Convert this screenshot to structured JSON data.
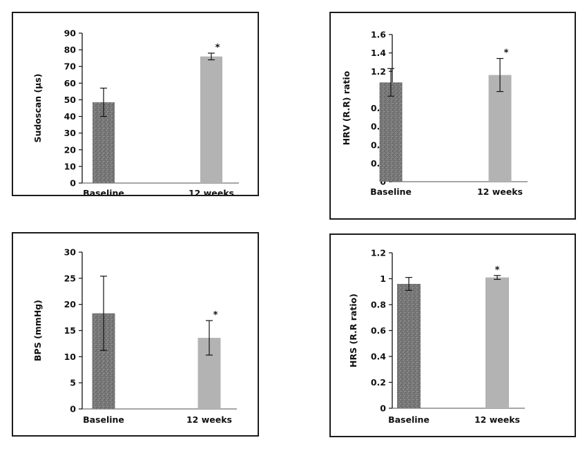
{
  "colors": {
    "baseline_bar": "#7a7a7a",
    "week12_bar": "#b3b3b3",
    "axis": "#111111",
    "frame": "#1a1a1a"
  },
  "chart_data": [
    {
      "type": "bar",
      "categories": [
        "Baseline",
        "12 weeks"
      ],
      "values": [
        48.5,
        76
      ],
      "errors": [
        8.5,
        2
      ],
      "significant": [
        false,
        true
      ],
      "significance_marker": "*",
      "ylabel": "Sudoscan (µs)",
      "ylim": [
        0,
        90
      ],
      "yticks": [
        "0",
        "10",
        "20",
        "30",
        "40",
        "50",
        "60",
        "70",
        "80",
        "90"
      ],
      "grid": false,
      "legend": "none"
    },
    {
      "type": "bar",
      "categories": [
        "Baseline",
        "12 weeks"
      ],
      "values": [
        1.08,
        1.16
      ],
      "errors": [
        0.15,
        0.18
      ],
      "significant": [
        false,
        true
      ],
      "significance_marker": "*",
      "ylabel": "HRV (R.R) ratio",
      "ylim": [
        0,
        1.6
      ],
      "yticks": [
        "0",
        "0.2",
        "0.4",
        "0.6",
        "0.8",
        "1",
        "1.2",
        "1.4",
        "1.6"
      ],
      "grid": false,
      "legend": "none"
    },
    {
      "type": "bar",
      "categories": [
        "Baseline",
        "12 weeks"
      ],
      "values": [
        18.3,
        13.6
      ],
      "errors": [
        7.1,
        3.3
      ],
      "significant": [
        false,
        true
      ],
      "significance_marker": "*",
      "ylabel": "BPS (mmHg)",
      "ylim": [
        0,
        30
      ],
      "yticks": [
        "0",
        "5",
        "10",
        "15",
        "20",
        "25",
        "30"
      ],
      "grid": false,
      "legend": "none"
    },
    {
      "type": "bar",
      "categories": [
        "Baseline",
        "12 weeks"
      ],
      "values": [
        0.96,
        1.01
      ],
      "errors": [
        0.05,
        0.015
      ],
      "significant": [
        false,
        true
      ],
      "significance_marker": "*",
      "ylabel": "HRS (R.R ratio)",
      "ylim": [
        0,
        1.2
      ],
      "yticks": [
        "0",
        "0.2",
        "0.4",
        "0.6",
        "0.8",
        "1",
        "1.2"
      ],
      "grid": false,
      "legend": "none"
    }
  ]
}
